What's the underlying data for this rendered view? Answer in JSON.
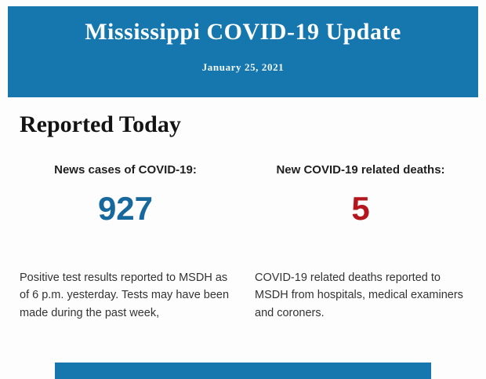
{
  "header": {
    "title": "Mississippi COVID-19 Update",
    "date": "January 25, 2021",
    "background": "#1677ae",
    "text_color": "#ffffff"
  },
  "section": {
    "heading": "Reported Today"
  },
  "stats": [
    {
      "label": "News cases of COVID-19:",
      "value": "927",
      "value_color": "#17689c",
      "description": "Positive test results reported to MSDH as of 6 p.m. yesterday. Tests may have been made during the past week,"
    },
    {
      "label": "New COVID-19 related deaths:",
      "value": "5",
      "value_color": "#b5161d",
      "description": "COVID-19 related deaths reported to MSDH from hospitals, medical examiners and coroners."
    }
  ],
  "footer": {
    "background": "#1677ae"
  }
}
